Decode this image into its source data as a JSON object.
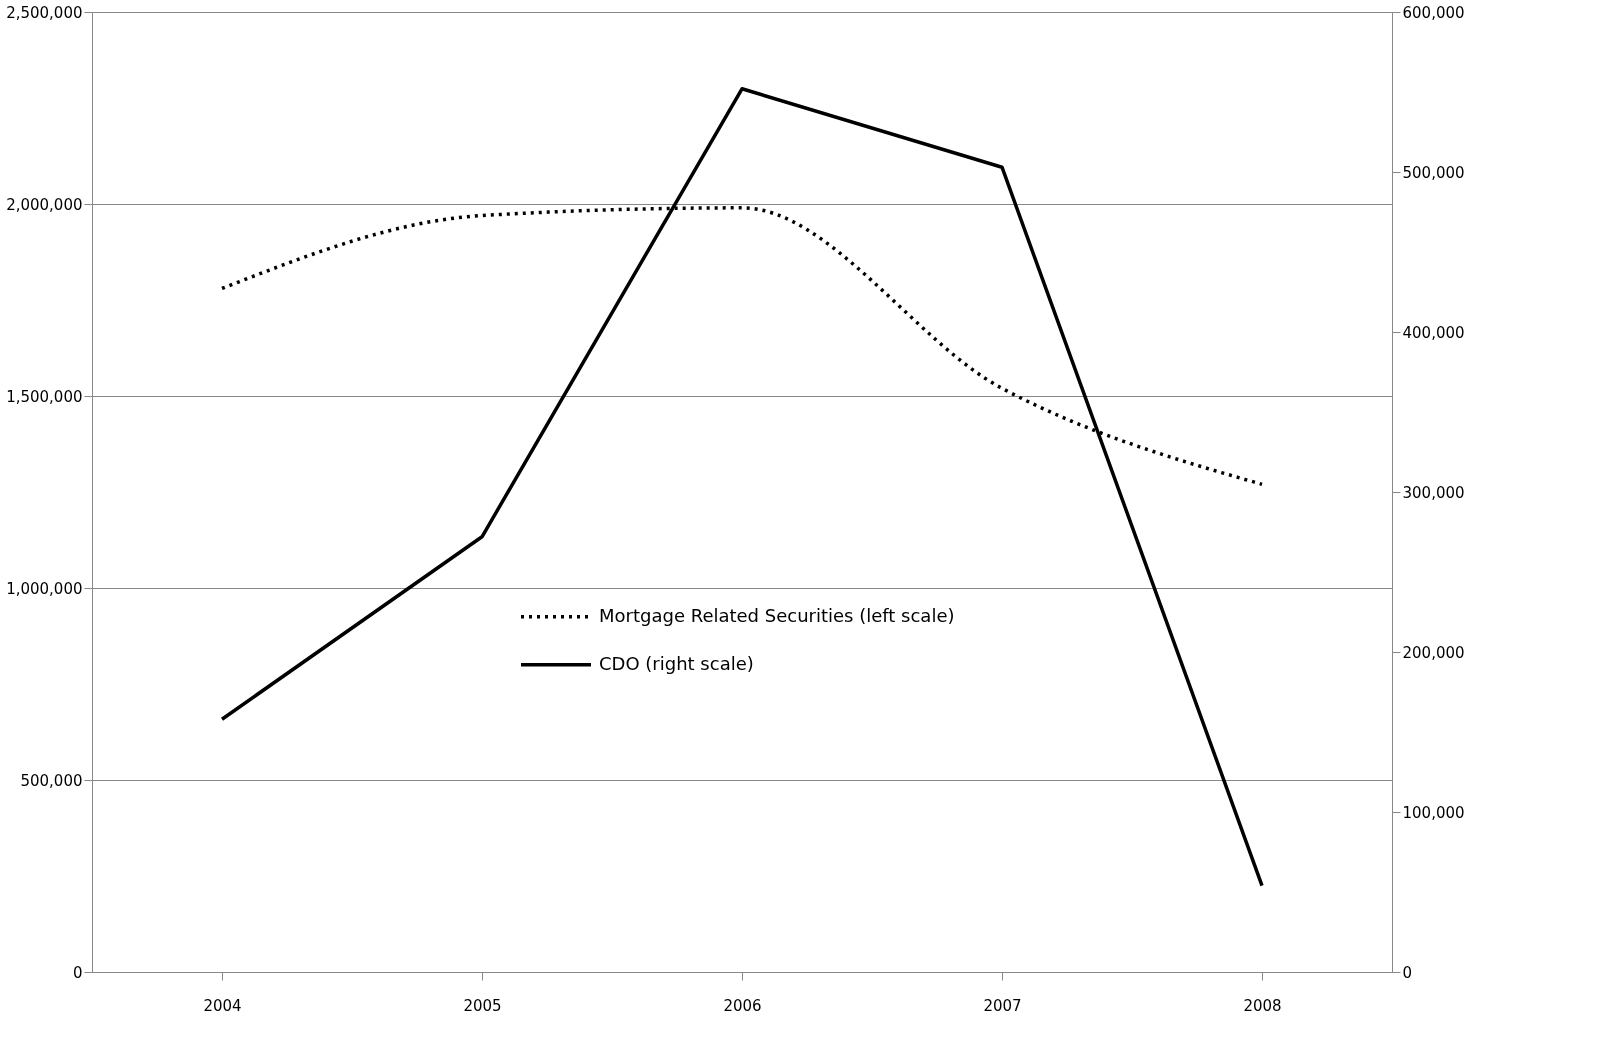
{
  "chart_data": {
    "type": "line",
    "categories": [
      "2004",
      "2005",
      "2006",
      "2007",
      "2008"
    ],
    "series": [
      {
        "name": "Mortgage Related Securities (left scale)",
        "color": "#000000",
        "line_style": "dotted",
        "values": [
          1780000,
          1970000,
          1990000,
          1520000,
          1270000
        ]
      },
      {
        "name": "CDO (right scale)",
        "color": "#000000",
        "line_style": "solid",
        "axis": "y2",
        "values": [
          158000,
          272000,
          552000,
          503000,
          54000
        ]
      }
    ],
    "ylim": [
      0,
      2500000
    ],
    "yticks": [
      0,
      {
        "value": 500000,
        "label": "500,000"
      },
      {
        "value": 1000000,
        "label": "1,000,000"
      },
      {
        "value": 1500000,
        "label": "1,500,000"
      },
      {
        "value": 2000000,
        "label": "2,000,000"
      },
      {
        "value": 2500000,
        "label": "2,500,000"
      }
    ],
    "y2lim": [
      0,
      600000
    ],
    "y2ticks": [
      0,
      {
        "value": 100000,
        "label": "100,000"
      },
      {
        "value": 200000,
        "label": "200,000"
      },
      {
        "value": 300000,
        "label": "300,000"
      },
      {
        "value": 400000,
        "label": "400,000"
      },
      {
        "value": 500000,
        "label": "500,000"
      },
      {
        "value": 600000,
        "label": "600,000"
      }
    ],
    "grid": "y",
    "legend": "center",
    "marker": "none"
  }
}
